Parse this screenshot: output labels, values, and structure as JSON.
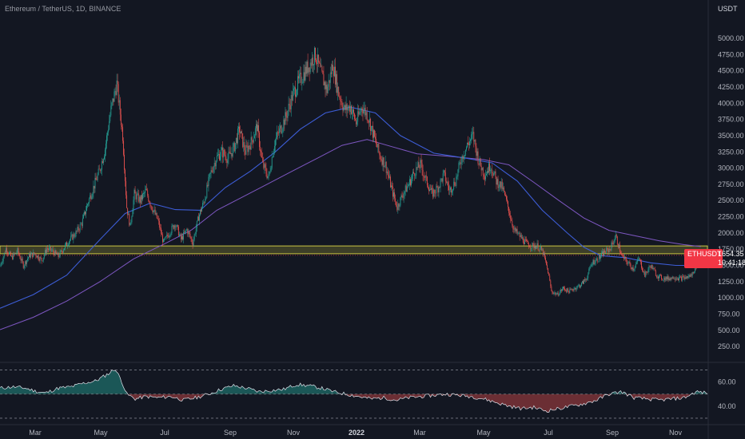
{
  "chart_data": {
    "type": "candlestick",
    "symbol": "Ethereum / TetherUS, 1D, BINANCE",
    "price_unit": "USDT",
    "y_ticks": [
      5000,
      4750,
      4500,
      4250,
      4000,
      3750,
      3500,
      3250,
      3000,
      2750,
      2500,
      2250,
      2000,
      1750,
      1500,
      1250,
      1000,
      750,
      500,
      250
    ],
    "y_tick_labels": [
      "5000.00",
      "4750.00",
      "4500.00",
      "4250.00",
      "4000.00",
      "3750.00",
      "3500.00",
      "3250.00",
      "3000.00",
      "2750.00",
      "2500.00",
      "2250.00",
      "2000.00",
      "1750.00",
      "1500.00",
      "1250.00",
      "1000.00",
      "750.00",
      "500.00",
      "250.00"
    ],
    "ylim": [
      30,
      5320
    ],
    "x_labels": [
      "Mar",
      "May",
      "Jul",
      "Sep",
      "Nov",
      "2022",
      "Mar",
      "May",
      "Jul",
      "Sep",
      "Nov"
    ],
    "x_label_bold": "2022",
    "price_path": [
      [
        0,
        1480
      ],
      [
        7,
        1760
      ],
      [
        14,
        1620
      ],
      [
        21,
        1720
      ],
      [
        28,
        1500
      ],
      [
        35,
        1650
      ],
      [
        42,
        1680
      ],
      [
        50,
        1580
      ],
      [
        56,
        1760
      ],
      [
        63,
        1720
      ],
      [
        70,
        1640
      ],
      [
        77,
        1780
      ],
      [
        84,
        1900
      ],
      [
        91,
        2000
      ],
      [
        98,
        2150
      ],
      [
        105,
        2450
      ],
      [
        112,
        2700
      ],
      [
        119,
        2950
      ],
      [
        126,
        3300
      ],
      [
        133,
        3900
      ],
      [
        140,
        4300
      ],
      [
        147,
        3500
      ],
      [
        152,
        2400
      ],
      [
        156,
        2100
      ],
      [
        161,
        2600
      ],
      [
        168,
        2500
      ],
      [
        175,
        2650
      ],
      [
        182,
        2400
      ],
      [
        189,
        2200
      ],
      [
        196,
        1850
      ],
      [
        203,
        2000
      ],
      [
        210,
        2150
      ],
      [
        217,
        1900
      ],
      [
        224,
        2050
      ],
      [
        231,
        1850
      ],
      [
        238,
        2250
      ],
      [
        245,
        2500
      ],
      [
        252,
        2900
      ],
      [
        259,
        3150
      ],
      [
        266,
        3250
      ],
      [
        273,
        3150
      ],
      [
        280,
        3300
      ],
      [
        287,
        3600
      ],
      [
        294,
        3250
      ],
      [
        301,
        3400
      ],
      [
        308,
        3650
      ],
      [
        315,
        3050
      ],
      [
        322,
        2850
      ],
      [
        329,
        3400
      ],
      [
        336,
        3600
      ],
      [
        343,
        3800
      ],
      [
        350,
        4100
      ],
      [
        357,
        4300
      ],
      [
        364,
        4450
      ],
      [
        371,
        4600
      ],
      [
        378,
        4750
      ],
      [
        385,
        4450
      ],
      [
        392,
        4200
      ],
      [
        399,
        4600
      ],
      [
        406,
        4150
      ],
      [
        413,
        3900
      ],
      [
        420,
        3950
      ],
      [
        427,
        3700
      ],
      [
        434,
        3950
      ],
      [
        441,
        3800
      ],
      [
        448,
        3500
      ],
      [
        455,
        3200
      ],
      [
        462,
        3050
      ],
      [
        469,
        2700
      ],
      [
        476,
        2400
      ],
      [
        483,
        2600
      ],
      [
        490,
        2750
      ],
      [
        497,
        2950
      ],
      [
        504,
        3050
      ],
      [
        511,
        2800
      ],
      [
        518,
        2600
      ],
      [
        525,
        2700
      ],
      [
        532,
        2900
      ],
      [
        539,
        2650
      ],
      [
        546,
        2800
      ],
      [
        553,
        3150
      ],
      [
        560,
        3350
      ],
      [
        567,
        3500
      ],
      [
        574,
        3100
      ],
      [
        581,
        2900
      ],
      [
        588,
        3050
      ],
      [
        595,
        2800
      ],
      [
        602,
        2700
      ],
      [
        609,
        2400
      ],
      [
        616,
        2050
      ],
      [
        623,
        1950
      ],
      [
        630,
        1850
      ],
      [
        637,
        1800
      ],
      [
        644,
        1800
      ],
      [
        651,
        1700
      ],
      [
        657,
        1400
      ],
      [
        661,
        1100
      ],
      [
        668,
        1050
      ],
      [
        675,
        1150
      ],
      [
        682,
        1100
      ],
      [
        689,
        1150
      ],
      [
        696,
        1200
      ],
      [
        703,
        1300
      ],
      [
        710,
        1550
      ],
      [
        717,
        1600
      ],
      [
        724,
        1700
      ],
      [
        731,
        1750
      ],
      [
        738,
        1950
      ],
      [
        745,
        1650
      ],
      [
        752,
        1550
      ],
      [
        759,
        1450
      ],
      [
        766,
        1600
      ],
      [
        773,
        1350
      ],
      [
        780,
        1500
      ],
      [
        787,
        1350
      ],
      [
        794,
        1300
      ],
      [
        801,
        1300
      ],
      [
        808,
        1320
      ],
      [
        815,
        1300
      ],
      [
        822,
        1310
      ],
      [
        829,
        1350
      ],
      [
        836,
        1550
      ],
      [
        843,
        1600
      ],
      [
        847,
        1654
      ]
    ],
    "ma_blue": [
      [
        0,
        840
      ],
      [
        40,
        1050
      ],
      [
        80,
        1350
      ],
      [
        120,
        1900
      ],
      [
        150,
        2300
      ],
      [
        180,
        2460
      ],
      [
        210,
        2360
      ],
      [
        240,
        2350
      ],
      [
        270,
        2700
      ],
      [
        300,
        2950
      ],
      [
        330,
        3250
      ],
      [
        360,
        3600
      ],
      [
        390,
        3850
      ],
      [
        420,
        3940
      ],
      [
        450,
        3850
      ],
      [
        480,
        3500
      ],
      [
        520,
        3230
      ],
      [
        560,
        3150
      ],
      [
        590,
        3080
      ],
      [
        620,
        2800
      ],
      [
        650,
        2350
      ],
      [
        680,
        2000
      ],
      [
        700,
        1780
      ],
      [
        720,
        1650
      ],
      [
        750,
        1620
      ],
      [
        780,
        1540
      ],
      [
        810,
        1500
      ],
      [
        840,
        1500
      ]
    ],
    "ma_purple": [
      [
        0,
        510
      ],
      [
        40,
        700
      ],
      [
        80,
        950
      ],
      [
        120,
        1250
      ],
      [
        160,
        1600
      ],
      [
        200,
        1850
      ],
      [
        230,
        2050
      ],
      [
        260,
        2350
      ],
      [
        290,
        2550
      ],
      [
        320,
        2750
      ],
      [
        350,
        2950
      ],
      [
        380,
        3150
      ],
      [
        410,
        3350
      ],
      [
        440,
        3440
      ],
      [
        470,
        3330
      ],
      [
        500,
        3220
      ],
      [
        540,
        3180
      ],
      [
        580,
        3130
      ],
      [
        610,
        3050
      ],
      [
        640,
        2780
      ],
      [
        670,
        2500
      ],
      [
        700,
        2230
      ],
      [
        730,
        2040
      ],
      [
        760,
        1960
      ],
      [
        790,
        1880
      ],
      [
        820,
        1820
      ],
      [
        840,
        1790
      ]
    ],
    "support_zone": [
      1680,
      1800
    ],
    "last_price": {
      "symbol": "ETHUSDT",
      "price": "1654.35",
      "countdown": "10:41:18",
      "value": 1654.35
    },
    "oscillator": {
      "levels": [
        70,
        50,
        30
      ],
      "tick_labels": [
        "60.00",
        "40.00"
      ],
      "tick_values": [
        60,
        40
      ],
      "ylim": [
        26,
        75
      ],
      "values": [
        [
          0,
          55
        ],
        [
          15,
          56
        ],
        [
          30,
          55
        ],
        [
          45,
          52
        ],
        [
          55,
          51
        ],
        [
          70,
          55
        ],
        [
          85,
          56
        ],
        [
          100,
          59
        ],
        [
          115,
          61
        ],
        [
          130,
          67
        ],
        [
          138,
          71
        ],
        [
          145,
          62
        ],
        [
          152,
          50
        ],
        [
          162,
          46
        ],
        [
          175,
          48
        ],
        [
          190,
          47
        ],
        [
          205,
          48
        ],
        [
          220,
          45
        ],
        [
          235,
          47
        ],
        [
          250,
          50
        ],
        [
          265,
          54
        ],
        [
          280,
          57
        ],
        [
          295,
          55
        ],
        [
          310,
          52
        ],
        [
          325,
          53
        ],
        [
          340,
          54
        ],
        [
          355,
          58
        ],
        [
          370,
          57
        ],
        [
          385,
          55
        ],
        [
          400,
          52
        ],
        [
          415,
          50
        ],
        [
          430,
          48
        ],
        [
          445,
          46
        ],
        [
          460,
          47
        ],
        [
          475,
          45
        ],
        [
          490,
          47
        ],
        [
          505,
          48
        ],
        [
          520,
          49
        ],
        [
          535,
          50
        ],
        [
          550,
          49
        ],
        [
          565,
          48
        ],
        [
          580,
          46
        ],
        [
          595,
          43
        ],
        [
          610,
          40
        ],
        [
          625,
          38
        ],
        [
          640,
          39
        ],
        [
          655,
          36
        ],
        [
          670,
          38
        ],
        [
          685,
          40
        ],
        [
          700,
          42
        ],
        [
          715,
          45
        ],
        [
          730,
          50
        ],
        [
          745,
          52
        ],
        [
          760,
          47
        ],
        [
          775,
          46
        ],
        [
          790,
          45
        ],
        [
          805,
          46
        ],
        [
          820,
          47
        ],
        [
          835,
          52
        ],
        [
          847,
          51
        ]
      ]
    }
  }
}
